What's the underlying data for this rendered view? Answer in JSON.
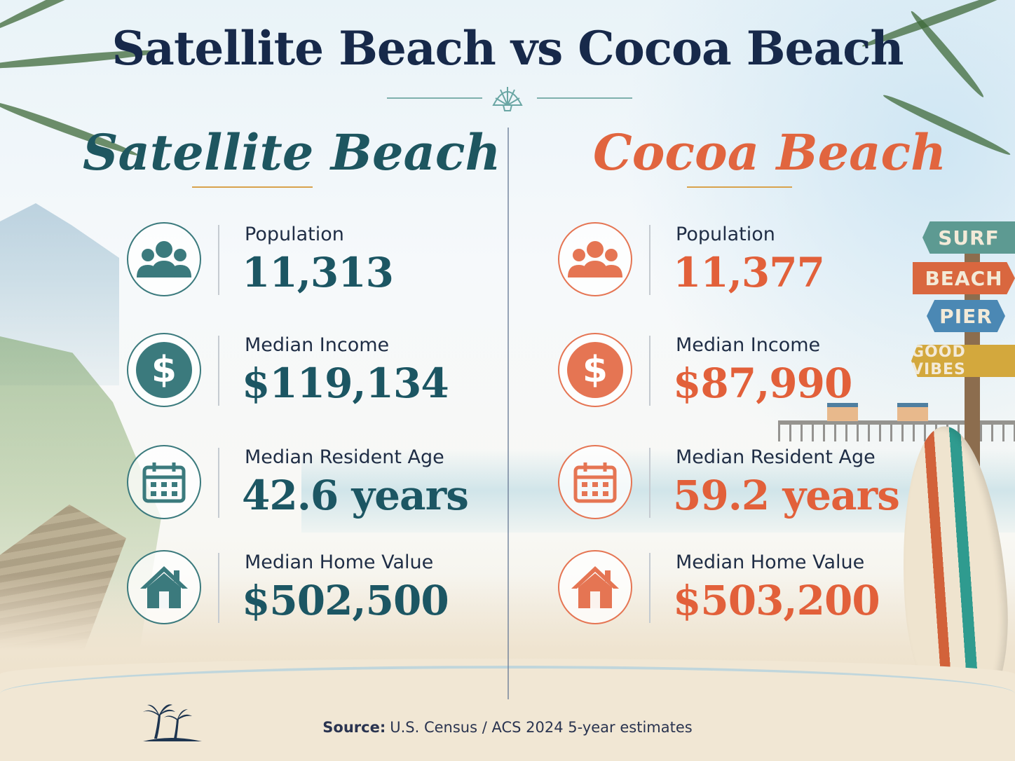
{
  "title": "Satellite Beach vs Cocoa Beach",
  "colors": {
    "satellite": "#1e5660",
    "cocoa": "#e1653f",
    "title": "#17294a"
  },
  "cities": [
    {
      "name": "Satellite Beach",
      "stats": [
        {
          "label": "Population",
          "value": "11,313",
          "icon": "people-icon"
        },
        {
          "label": "Median Income",
          "value": "$119,134",
          "icon": "dollar-icon"
        },
        {
          "label": "Median Resident Age",
          "value": "42.6 years",
          "icon": "calendar-icon"
        },
        {
          "label": "Median Home Value",
          "value": "$502,500",
          "icon": "house-icon"
        }
      ]
    },
    {
      "name": "Cocoa Beach",
      "stats": [
        {
          "label": "Population",
          "value": "11,377",
          "icon": "people-icon"
        },
        {
          "label": "Median Income",
          "value": "$87,990",
          "icon": "dollar-icon"
        },
        {
          "label": "Median Resident Age",
          "value": "59.2 years",
          "icon": "calendar-icon"
        },
        {
          "label": "Median Home Value",
          "value": "$503,200",
          "icon": "house-icon"
        }
      ]
    }
  ],
  "signs": [
    "SURF",
    "BEACH",
    "PIER",
    "GOOD VIBES"
  ],
  "dollar_glyph": "$",
  "source": {
    "label": "Source:",
    "text": "U.S. Census / ACS 2024 5-year estimates"
  }
}
